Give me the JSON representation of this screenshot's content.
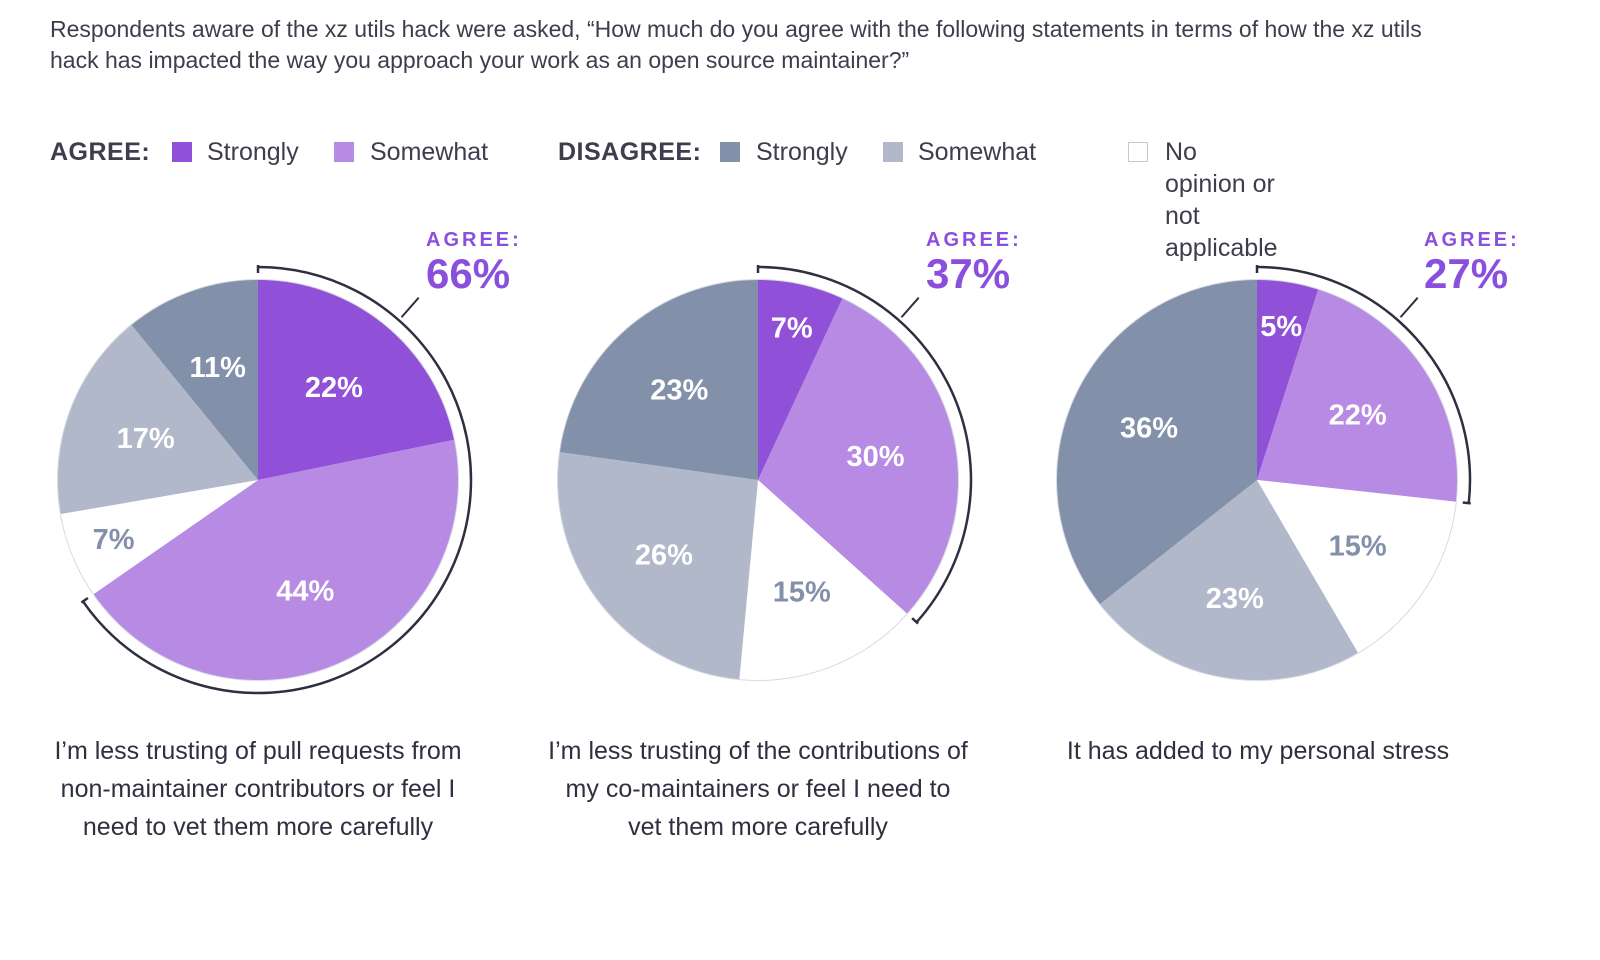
{
  "question": "Respondents aware of the xz utils hack were asked, “How much do you agree with the following statements in terms of how the xz utils hack has impacted the way you approach your work as an open source maintainer?”",
  "legend": {
    "agree_label": "AGREE:",
    "disagree_label": "DISAGREE:",
    "agree_strongly": "Strongly",
    "agree_somewhat": "Somewhat",
    "disagree_strongly": "Strongly",
    "disagree_somewhat": "Somewhat",
    "no_opinion": "No opinion or not applicable"
  },
  "colors": {
    "agree_strongly": "#9150d8",
    "agree_somewhat": "#b78ae3",
    "disagree_strongly": "#8290a9",
    "disagree_somewhat": "#b0b8ca",
    "no_opinion": "#ffffff",
    "accent": "#8a4fdc"
  },
  "chart_data": [
    {
      "type": "pie",
      "caption": "I’m less trusting of pull requests from non-maintainer contributors or feel I need to vet them more carefully",
      "agree_tag": "AGREE:",
      "agree_total": "66%",
      "slices": [
        {
          "category": "Agree strongly",
          "value": 22,
          "label": "22%"
        },
        {
          "category": "Agree somewhat",
          "value": 44,
          "label": "44%"
        },
        {
          "category": "No opinion or not applicable",
          "value": 7,
          "label": "7%"
        },
        {
          "category": "Disagree somewhat",
          "value": 17,
          "label": "17%"
        },
        {
          "category": "Disagree strongly",
          "value": 11,
          "label": "11%"
        }
      ]
    },
    {
      "type": "pie",
      "caption": "I’m less trusting of the contributions of my co-maintainers or feel I need to vet them more carefully",
      "agree_tag": "AGREE:",
      "agree_total": "37%",
      "slices": [
        {
          "category": "Agree strongly",
          "value": 7,
          "label": "7%"
        },
        {
          "category": "Agree somewhat",
          "value": 30,
          "label": "30%"
        },
        {
          "category": "No opinion or not applicable",
          "value": 15,
          "label": "15%"
        },
        {
          "category": "Disagree somewhat",
          "value": 26,
          "label": "26%"
        },
        {
          "category": "Disagree strongly",
          "value": 23,
          "label": "23%"
        }
      ]
    },
    {
      "type": "pie",
      "caption": "It has added to my personal stress",
      "agree_tag": "AGREE:",
      "agree_total": "27%",
      "slices": [
        {
          "category": "Agree strongly",
          "value": 5,
          "label": "5%"
        },
        {
          "category": "Agree somewhat",
          "value": 22,
          "label": "22%"
        },
        {
          "category": "No opinion or not applicable",
          "value": 15,
          "label": "15%"
        },
        {
          "category": "Disagree somewhat",
          "value": 23,
          "label": "23%"
        },
        {
          "category": "Disagree strongly",
          "value": 36,
          "label": "36%"
        }
      ]
    }
  ]
}
